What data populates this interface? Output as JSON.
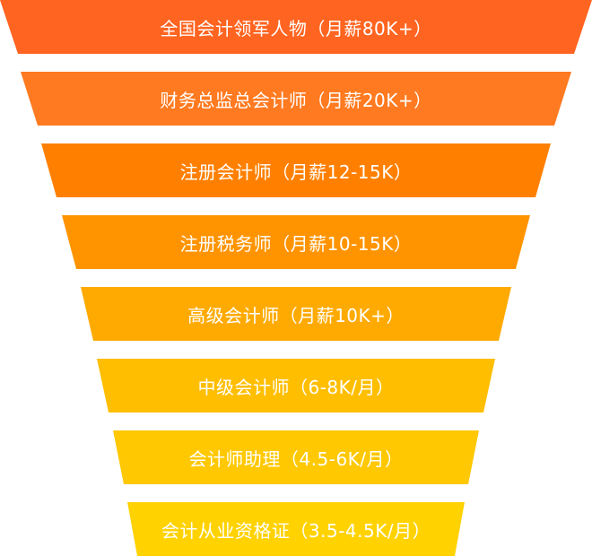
{
  "funnel": {
    "levels": [
      {
        "label": "全国会计领军人物（月薪80K+）",
        "color": "#FF6420"
      },
      {
        "label": "财务总监总会计师（月薪20K+）",
        "color": "#FF7A20"
      },
      {
        "label": "注册会计师（月薪12-15K）",
        "color": "#FF8000"
      },
      {
        "label": "注册税务师（月薪10-15K）",
        "color": "#FF9400"
      },
      {
        "label": "高级会计师（月薪10K+）",
        "color": "#FFAA00"
      },
      {
        "label": "中级会计师（6-8K/月）",
        "color": "#FFBE00"
      },
      {
        "label": "会计师助理（4.5-6K/月）",
        "color": "#FFC800"
      },
      {
        "label": "会计从业资格证（3.5-4.5K/月）",
        "color": "#FFD200"
      }
    ]
  }
}
